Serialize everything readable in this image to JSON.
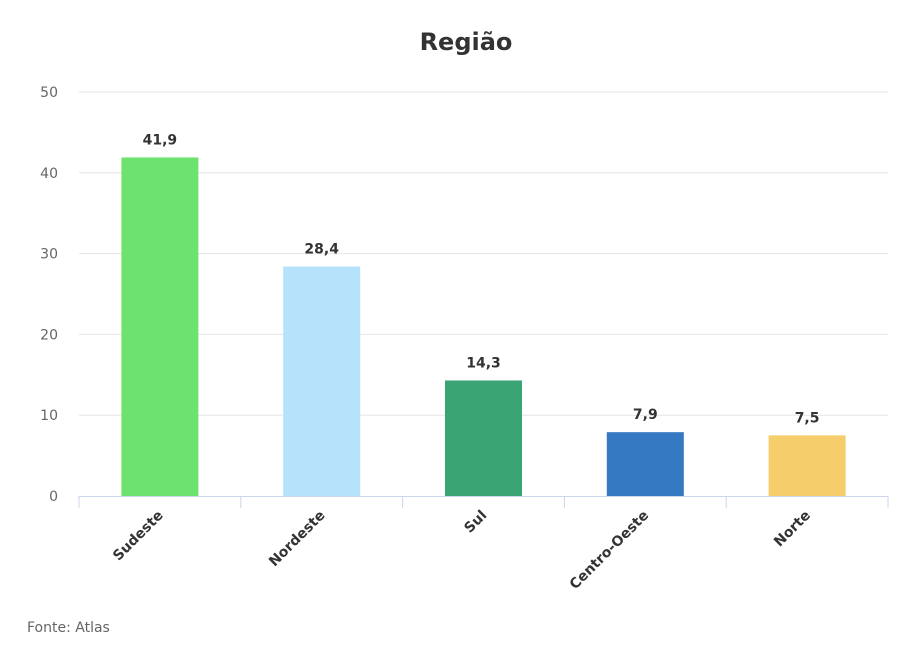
{
  "chart_data": {
    "type": "bar",
    "title": "Região",
    "categories": [
      "Sudeste",
      "Nordeste",
      "Sul",
      "Centro-Oeste",
      "Norte"
    ],
    "values": [
      41.9,
      28.4,
      14.3,
      7.9,
      7.5
    ],
    "value_labels": [
      "41,9",
      "28,4",
      "14,3",
      "7,9",
      "7,5"
    ],
    "colors": [
      "#6ee26e",
      "#b6e2fb",
      "#3aa475",
      "#3479c2",
      "#f5cd6a"
    ],
    "yticks": [
      "0",
      "10",
      "20",
      "30",
      "40",
      "50"
    ],
    "ylim": [
      0,
      50
    ],
    "grid": true,
    "legend": "none"
  },
  "source": "Fonte: Atlas"
}
